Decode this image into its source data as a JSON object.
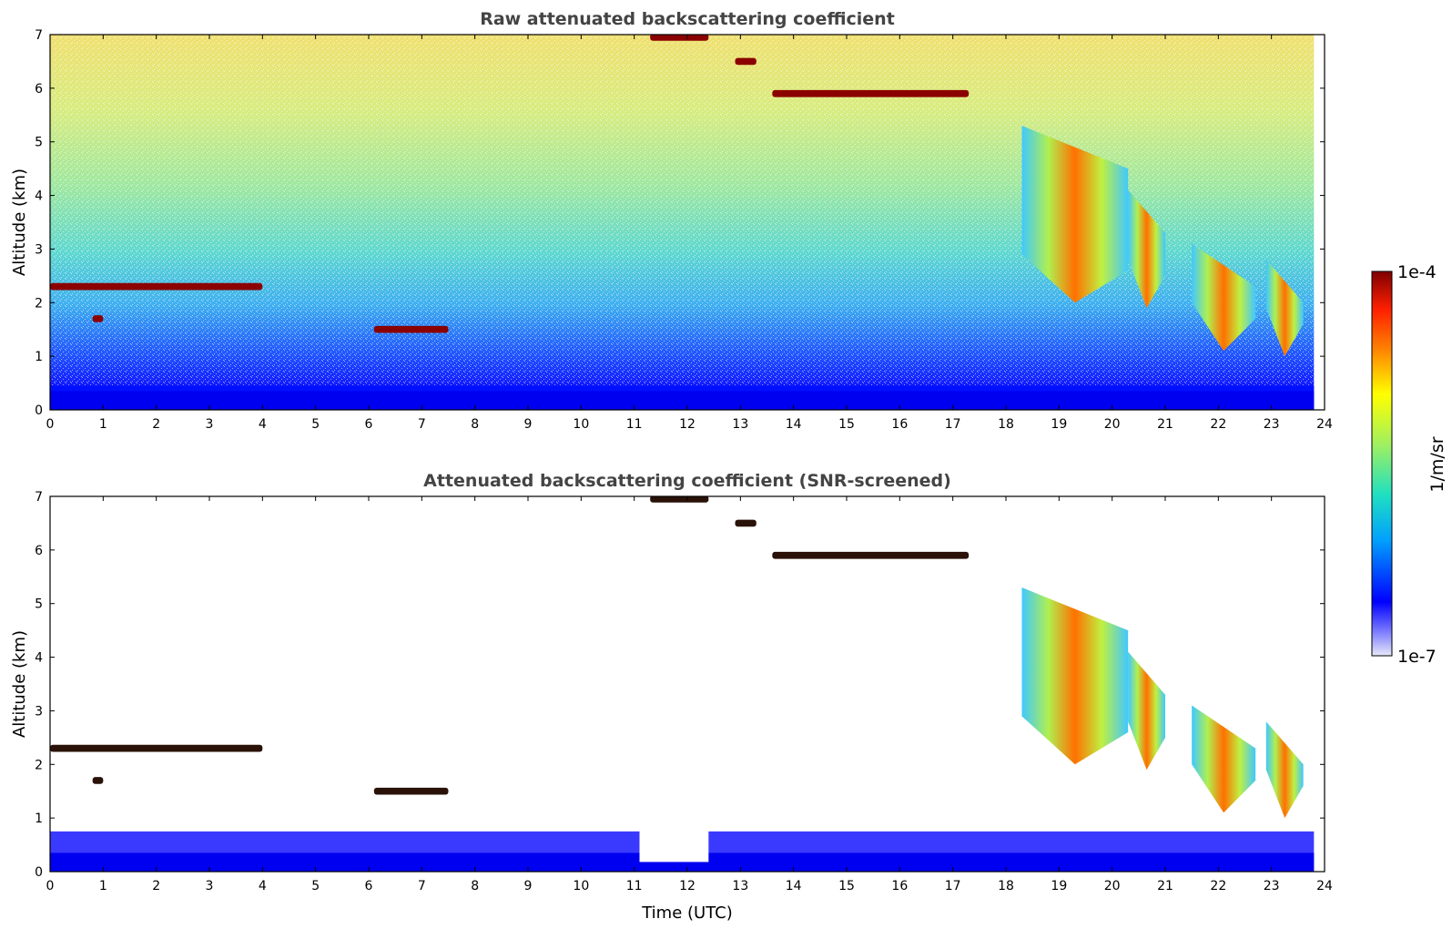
{
  "chart_data": [
    {
      "type": "heatmap",
      "title": "Raw attenuated backscattering coefficient",
      "xlabel": "",
      "ylabel": "Altitude (km)",
      "xlim": [
        0,
        24
      ],
      "ylim": [
        0,
        7
      ],
      "xticks": [
        "0",
        "1",
        "2",
        "3",
        "4",
        "5",
        "6",
        "7",
        "8",
        "9",
        "10",
        "11",
        "12",
        "13",
        "14",
        "15",
        "16",
        "17",
        "18",
        "19",
        "20",
        "21",
        "22",
        "23",
        "24"
      ],
      "yticks": [
        "0",
        "1",
        "2",
        "3",
        "4",
        "5",
        "6",
        "7"
      ],
      "screened": false
    },
    {
      "type": "heatmap",
      "title": "Attenuated backscattering coefficient (SNR-screened)",
      "xlabel": "Time (UTC)",
      "ylabel": "Altitude (km)",
      "xlim": [
        0,
        24
      ],
      "ylim": [
        0,
        7
      ],
      "xticks": [
        "0",
        "1",
        "2",
        "3",
        "4",
        "5",
        "6",
        "7",
        "8",
        "9",
        "10",
        "11",
        "12",
        "13",
        "14",
        "15",
        "16",
        "17",
        "18",
        "19",
        "20",
        "21",
        "22",
        "23",
        "24"
      ],
      "yticks": [
        "0",
        "1",
        "2",
        "3",
        "4",
        "5",
        "6",
        "7"
      ],
      "screened": true
    }
  ],
  "colorbar": {
    "label": "1/m/sr",
    "min_label": "1e-7",
    "max_label": "1e-4",
    "scale": "log",
    "colormap": [
      "#e8e8f8",
      "#0000ff",
      "#00b0ff",
      "#20e0c0",
      "#a0f060",
      "#ffff00",
      "#ff8000",
      "#ff2000",
      "#800000"
    ]
  },
  "features": {
    "cloud_layers": [
      {
        "t0": 0.0,
        "t1": 4.0,
        "z": 2.3,
        "color": "#8b0000"
      },
      {
        "t0": 0.8,
        "t1": 1.0,
        "z": 1.7,
        "color": "#8b0000"
      },
      {
        "t0": 6.1,
        "t1": 7.5,
        "z": 1.5,
        "color": "#8b0000"
      },
      {
        "t0": 11.3,
        "t1": 12.4,
        "z": 6.95,
        "color": "#8b0000"
      },
      {
        "t0": 12.9,
        "t1": 13.3,
        "z": 6.5,
        "color": "#8b0000"
      },
      {
        "t0": 13.6,
        "t1": 17.3,
        "z": 5.9,
        "color": "#8b0000"
      }
    ],
    "precip_shafts": [
      {
        "t0": 18.3,
        "t1": 20.3,
        "ztop": 5.3,
        "zbot": 2.0
      },
      {
        "t0": 20.3,
        "t1": 21.0,
        "ztop": 4.1,
        "zbot": 1.9
      },
      {
        "t0": 21.5,
        "t1": 22.7,
        "ztop": 3.1,
        "zbot": 1.1
      },
      {
        "t0": 22.9,
        "t1": 23.6,
        "ztop": 2.8,
        "zbot": 1.0
      }
    ]
  }
}
